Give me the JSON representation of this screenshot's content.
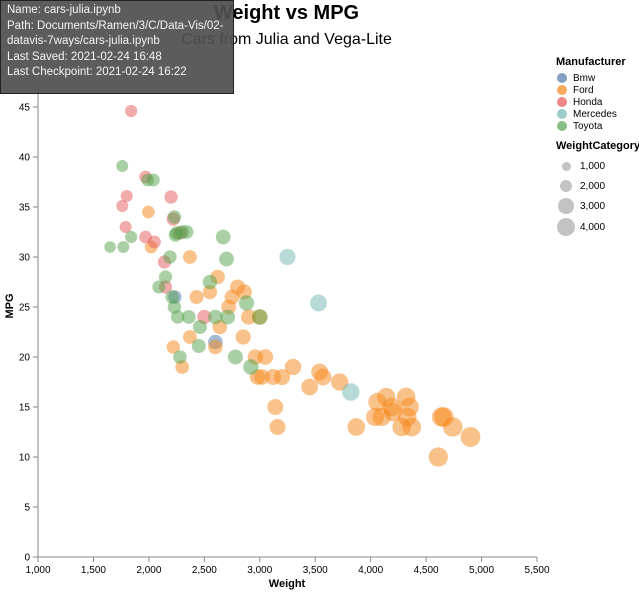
{
  "chart_data": {
    "type": "scatter",
    "title": "Weight vs MPG",
    "subtitle": "Cars from Julia and Vega-Lite",
    "xlabel": "Weight",
    "ylabel": "MPG",
    "xlim": [
      1000,
      5500
    ],
    "ylim": [
      0,
      47
    ],
    "x_ticks": [
      "1,000",
      "1,500",
      "2,000",
      "2,500",
      "3,000",
      "3,500",
      "4,000",
      "4,500",
      "5,000",
      "5,500"
    ],
    "y_ticks": [
      "0",
      "5",
      "10",
      "15",
      "20",
      "25",
      "30",
      "35",
      "40",
      "45"
    ],
    "grid": false,
    "legend_position": "right",
    "color_legend": {
      "title": "Manufacturer",
      "entries": [
        {
          "name": "Bmw",
          "color": "#4c78a8"
        },
        {
          "name": "Ford",
          "color": "#f58518"
        },
        {
          "name": "Honda",
          "color": "#e45756"
        },
        {
          "name": "Mercedes",
          "color": "#72b7b2"
        },
        {
          "name": "Toyota",
          "color": "#54a24b"
        }
      ]
    },
    "size_legend": {
      "title": "WeightCategory",
      "entries": [
        {
          "label": "1,000",
          "value": 1000
        },
        {
          "label": "2,000",
          "value": 2000
        },
        {
          "label": "3,000",
          "value": 3000
        },
        {
          "label": "4,000",
          "value": 4000
        }
      ]
    },
    "series": [
      {
        "name": "Bmw",
        "points": [
          [
            2234,
            26
          ],
          [
            2600,
            21.5
          ]
        ]
      },
      {
        "name": "Ford",
        "points": [
          [
            1995,
            34.5
          ],
          [
            2020,
            31
          ],
          [
            2220,
            21
          ],
          [
            2300,
            19
          ],
          [
            2370,
            30
          ],
          [
            2370,
            22
          ],
          [
            2430,
            26
          ],
          [
            2550,
            26.5
          ],
          [
            2600,
            21
          ],
          [
            2620,
            28
          ],
          [
            2640,
            23
          ],
          [
            2720,
            25
          ],
          [
            2750,
            26
          ],
          [
            2800,
            27
          ],
          [
            2850,
            22
          ],
          [
            2860,
            26.5
          ],
          [
            2900,
            24
          ],
          [
            2960,
            20
          ],
          [
            2980,
            18
          ],
          [
            3000,
            24
          ],
          [
            3020,
            18
          ],
          [
            3050,
            20
          ],
          [
            3120,
            18
          ],
          [
            3140,
            15
          ],
          [
            3160,
            13
          ],
          [
            3200,
            18
          ],
          [
            3300,
            19
          ],
          [
            3450,
            17
          ],
          [
            3540,
            18.5
          ],
          [
            3570,
            18
          ],
          [
            3720,
            17.5
          ],
          [
            3870,
            13
          ],
          [
            4040,
            14
          ],
          [
            4060,
            15.5
          ],
          [
            4100,
            14
          ],
          [
            4140,
            16
          ],
          [
            4190,
            15
          ],
          [
            4200,
            14.5
          ],
          [
            4280,
            13
          ],
          [
            4320,
            16
          ],
          [
            4330,
            14
          ],
          [
            4350,
            15
          ],
          [
            4370,
            13
          ],
          [
            4610,
            10
          ],
          [
            4640,
            14
          ],
          [
            4660,
            14
          ],
          [
            4740,
            13
          ],
          [
            4900,
            12
          ]
        ]
      },
      {
        "name": "Honda",
        "points": [
          [
            1840,
            44.6
          ],
          [
            1760,
            35.1
          ],
          [
            1800,
            36.1
          ],
          [
            1790,
            33
          ],
          [
            1970,
            38
          ],
          [
            1970,
            32
          ],
          [
            2050,
            31.5
          ],
          [
            2140,
            29.5
          ],
          [
            2150,
            27
          ],
          [
            2200,
            36
          ],
          [
            2220,
            33.8
          ],
          [
            2280,
            32.4
          ],
          [
            2500,
            24
          ]
        ]
      },
      {
        "name": "Mercedes",
        "points": [
          [
            3250,
            30
          ],
          [
            3530,
            25.4
          ],
          [
            3820,
            16.5
          ]
        ]
      },
      {
        "name": "Toyota",
        "points": [
          [
            1650,
            31
          ],
          [
            1770,
            31
          ],
          [
            1760,
            39.1
          ],
          [
            1840,
            32
          ],
          [
            1990,
            37.7
          ],
          [
            2040,
            37.7
          ],
          [
            2090,
            27
          ],
          [
            2150,
            28
          ],
          [
            2190,
            30
          ],
          [
            2210,
            26
          ],
          [
            2230,
            25
          ],
          [
            2230,
            34
          ],
          [
            2240,
            32.2
          ],
          [
            2250,
            32.4
          ],
          [
            2260,
            24
          ],
          [
            2280,
            20
          ],
          [
            2300,
            32.5
          ],
          [
            2340,
            32.5
          ],
          [
            2360,
            24
          ],
          [
            2450,
            21.1
          ],
          [
            2460,
            23
          ],
          [
            2550,
            27.5
          ],
          [
            2600,
            24
          ],
          [
            2670,
            32
          ],
          [
            2710,
            24
          ],
          [
            2700,
            29.8
          ],
          [
            2780,
            20
          ],
          [
            2880,
            25.4
          ],
          [
            2920,
            19
          ],
          [
            3000,
            24
          ]
        ]
      }
    ]
  },
  "tooltip": {
    "lines": [
      "Name: cars-julia.ipynb",
      "Path: Documents/Ramen/3/C/Data-Vis/02-",
      "datavis-7ways/cars-julia.ipynb",
      "Last Saved: 2021-02-24 16:48",
      "Last Checkpoint: 2021-02-24 16:22"
    ]
  }
}
